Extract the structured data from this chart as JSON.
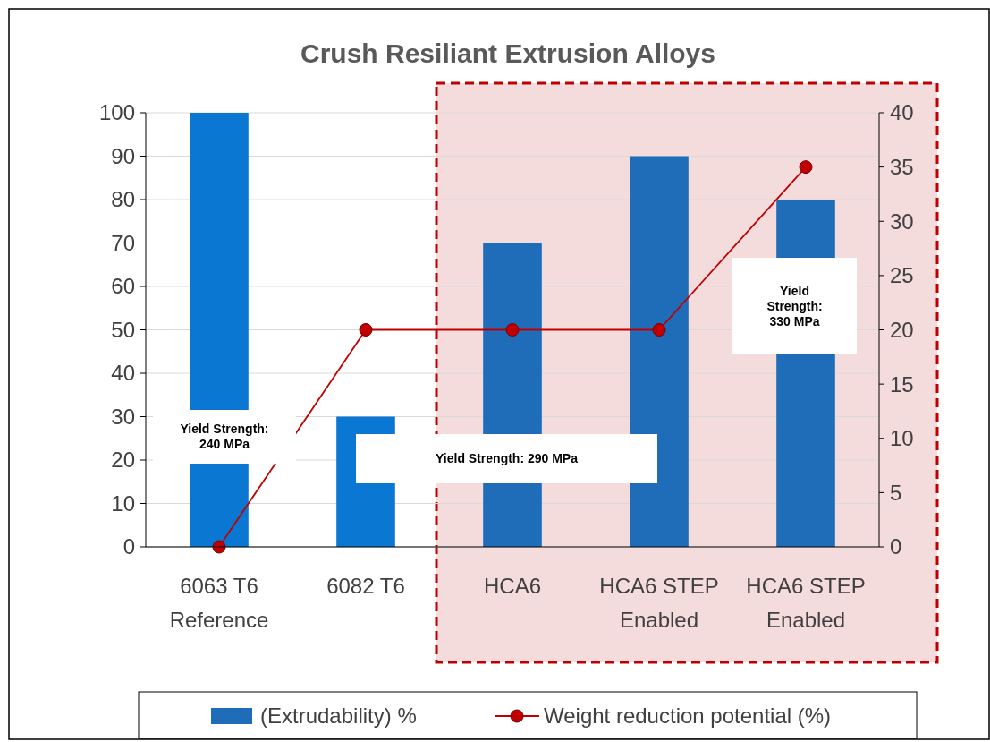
{
  "chart_data": {
    "type": "bar",
    "title": "Crush Resiliant Extrusion Alloys",
    "categories": [
      "6063 T6 Reference",
      "6082 T6",
      "HCA6",
      "HCA6 STEP Enabled",
      "HCA6 STEP Enabled"
    ],
    "series": [
      {
        "name": "(Extrudability) %",
        "values": [
          100,
          30,
          70,
          90,
          80
        ],
        "colors": [
          "#0a78d2",
          "#0a78d2",
          "#1f6cb8",
          "#1f6cb8",
          "#1f6cb8"
        ],
        "color": "#1f6cb8"
      },
      {
        "name": "Weight reduction potential (%)",
        "type": "line",
        "axis": "y2",
        "color": "#c00000",
        "marker": "circle",
        "values": [
          0,
          20,
          20,
          20,
          35
        ]
      }
    ],
    "ylim": [
      0,
      100
    ],
    "yticks": [
      0,
      10,
      20,
      30,
      40,
      50,
      60,
      70,
      80,
      90,
      100
    ],
    "y2lim": [
      0,
      40
    ],
    "y2ticks": [
      0,
      5,
      10,
      15,
      20,
      25,
      30,
      35,
      40
    ],
    "grid": "y",
    "legend": "bottom",
    "annotations": [
      "Yield Strength: 240 MPa",
      "Yield Strength: 290 MPa",
      "Yield Strength: 330 MPa"
    ]
  }
}
